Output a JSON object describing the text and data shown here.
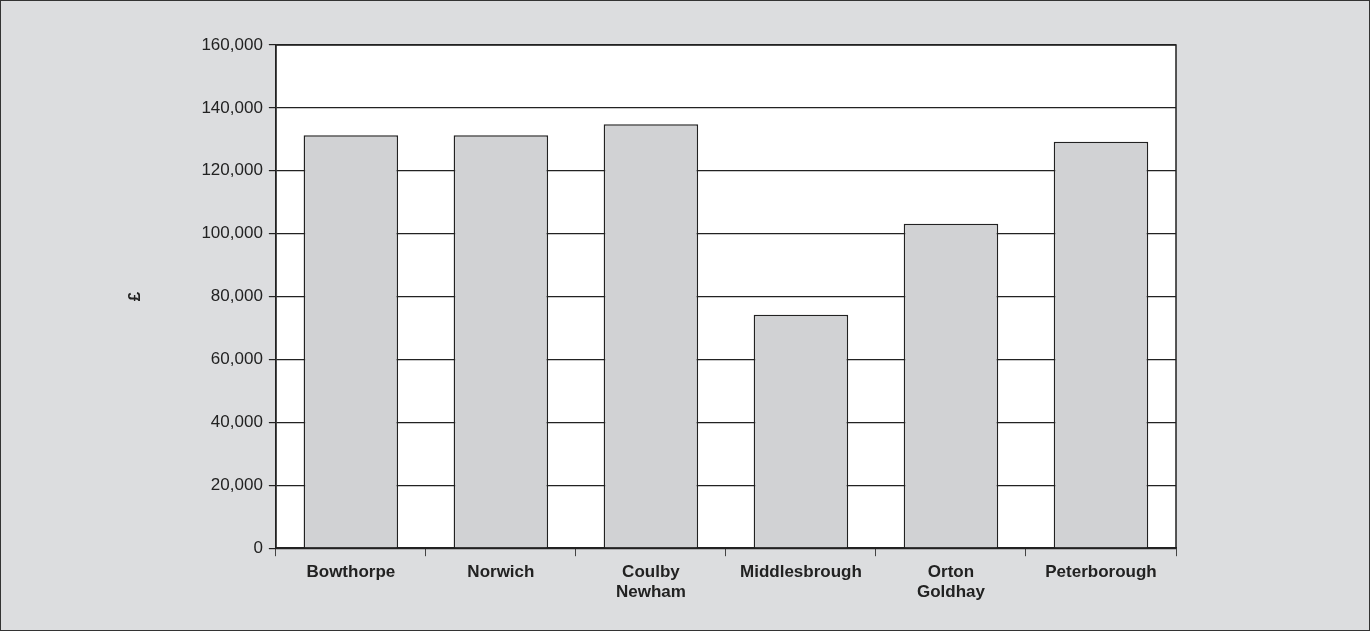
{
  "chart_data": {
    "type": "bar",
    "ylabel": "£",
    "categories": [
      "Bowthorpe",
      "Norwich",
      "Coulby Newham",
      "Middlesbrough",
      "Orton Goldhay",
      "Peterborough"
    ],
    "values": [
      131300,
      131300,
      134800,
      74200,
      103200,
      129200
    ],
    "color": "#d1d2d4",
    "ylim": [
      0,
      160000
    ],
    "yticks": [
      {
        "value": 0,
        "label": "0"
      },
      {
        "value": 20000,
        "label": "20,000"
      },
      {
        "value": 40000,
        "label": "40,000"
      },
      {
        "value": 60000,
        "label": "60,000"
      },
      {
        "value": 80000,
        "label": "80,000"
      },
      {
        "value": 100000,
        "label": "100,000"
      },
      {
        "value": 120000,
        "label": "120,000"
      },
      {
        "value": 140000,
        "label": "140,000"
      },
      {
        "value": 160000,
        "label": "160,000"
      }
    ],
    "grid": "y",
    "legend": false
  }
}
